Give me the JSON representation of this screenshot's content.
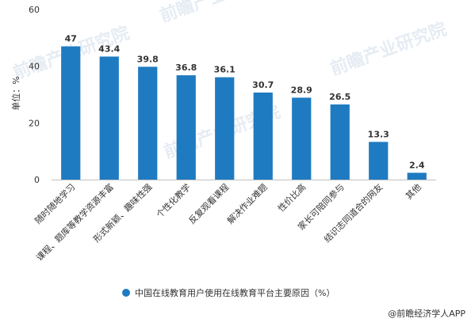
{
  "chart_data": {
    "type": "bar",
    "categories": [
      "随时随地学习",
      "课程、题库等教学资源丰富",
      "形式新颖、趣味性强",
      "个性化教学",
      "反复观看课程",
      "解决作业难题",
      "性价比高",
      "家长可陪同参与",
      "结识志同道合的网友",
      "其他"
    ],
    "series": [
      {
        "name": "中国在线教育用户使用在线教育平台主要原因（%）",
        "values": [
          47,
          43.4,
          39.8,
          36.8,
          36.1,
          30.7,
          28.9,
          26.5,
          13.3,
          2.4
        ]
      }
    ],
    "value_labels": [
      "47",
      "43.4",
      "39.8",
      "36.8",
      "36.1",
      "30.7",
      "28.9",
      "26.5",
      "13.3",
      "2.4"
    ],
    "ylabel": "单位：%",
    "ylim": [
      0,
      60
    ],
    "yticks": [
      "0",
      "20",
      "40",
      "60"
    ],
    "grid": false,
    "legend_position": "bottom",
    "bar_color": "#1f7bc1"
  },
  "source": "@前瞻经济学人APP",
  "watermark": "前瞻产业研究院"
}
